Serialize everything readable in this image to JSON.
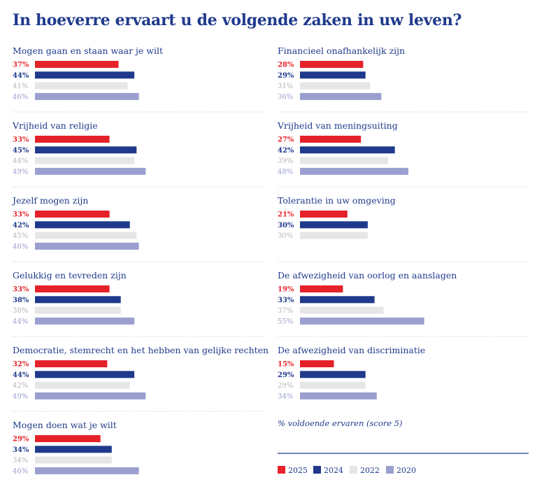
{
  "chart_data": {
    "type": "bar",
    "title": "In hoeverre ervaart u de volgende zaken in uw leven?",
    "note": "% voldoende ervaren (score 5)",
    "series": [
      {
        "name": "2025",
        "color": "#e52229"
      },
      {
        "name": "2024",
        "color": "#1f3a8c"
      },
      {
        "name": "2022",
        "color": "#e6e6e6"
      },
      {
        "name": "2020",
        "color": "#9b9fcf"
      }
    ],
    "legend_position": "bottom-right",
    "groups": [
      {
        "label": "Mogen gaan en staan waar je wilt",
        "values": [
          37,
          44,
          41,
          46
        ]
      },
      {
        "label": "Financieel onafhankelijk zijn",
        "values": [
          28,
          29,
          31,
          36
        ]
      },
      {
        "label": "Vrijheid van religie",
        "values": [
          33,
          45,
          44,
          49
        ]
      },
      {
        "label": "Vrijheid van meningsuiting",
        "values": [
          27,
          42,
          39,
          48
        ]
      },
      {
        "label": "Jezelf mogen zijn",
        "values": [
          33,
          42,
          45,
          46
        ]
      },
      {
        "label": "Tolerantie in uw omgeving",
        "values": [
          21,
          30,
          30
        ]
      },
      {
        "label": "Gelukkig en tevreden zijn",
        "values": [
          33,
          38,
          38,
          44
        ]
      },
      {
        "label": "De afwezigheid van oorlog en aanslagen",
        "values": [
          19,
          33,
          37,
          55
        ]
      },
      {
        "label": "Democratie, stemrecht en het hebben van gelijke rechten",
        "values": [
          32,
          44,
          42,
          49
        ]
      },
      {
        "label": "De afwezigheid van discriminatie",
        "values": [
          15,
          29,
          29,
          34
        ]
      },
      {
        "label": "Mogen doen wat je wilt",
        "values": [
          29,
          34,
          34,
          46
        ]
      }
    ]
  }
}
